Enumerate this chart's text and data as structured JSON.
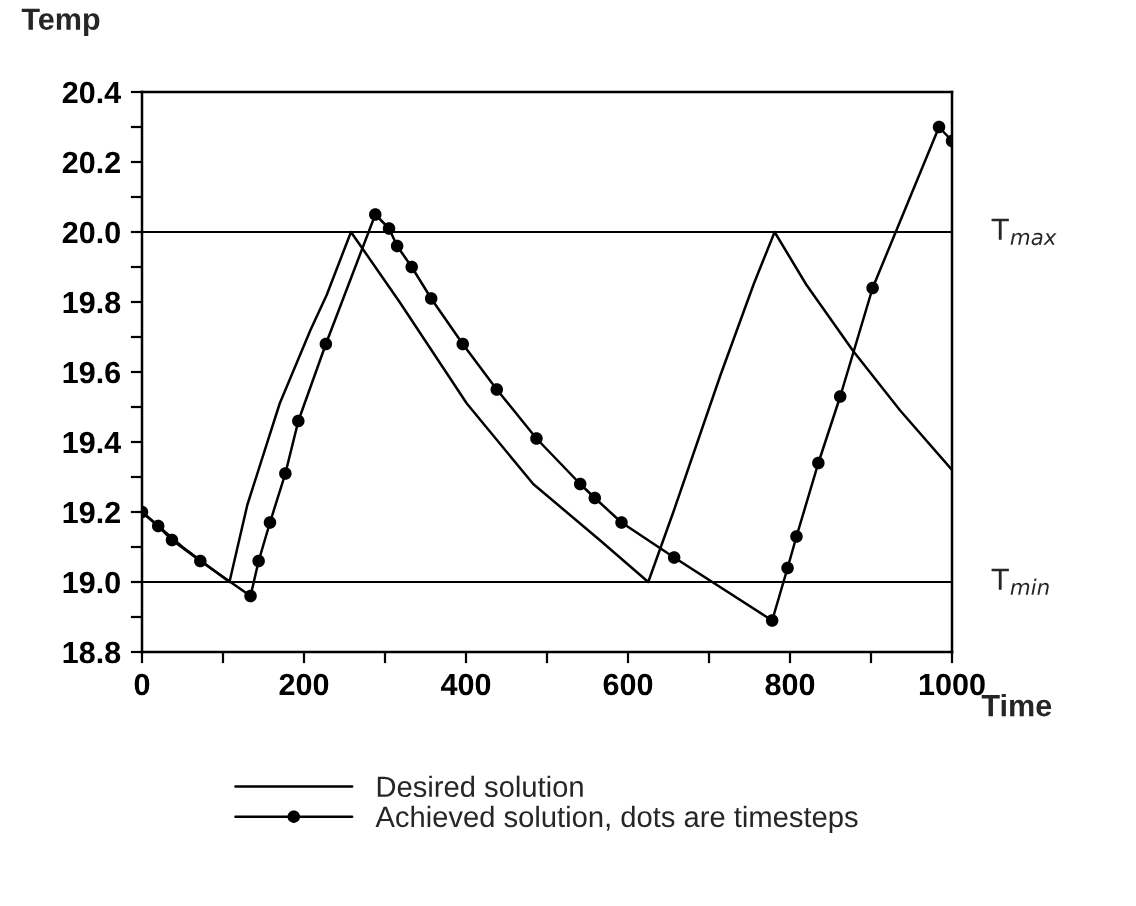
{
  "chart_data": {
    "type": "line",
    "xlabel": "Time",
    "ylabel": "Temp",
    "xlim": [
      0,
      1000
    ],
    "ylim": [
      18.8,
      20.4
    ],
    "xticks": [
      0,
      {
        "value": 100,
        "label": null
      },
      200,
      {
        "value": 300,
        "label": null
      },
      400,
      {
        "value": 500,
        "label": null
      },
      600,
      {
        "value": 700,
        "label": null
      },
      800,
      {
        "value": 900,
        "label": null
      },
      1000
    ],
    "yticks": [
      18.8,
      {
        "value": 18.9,
        "label": null
      },
      {
        "value": 19.0,
        "label": "19.0"
      },
      {
        "value": 19.1,
        "label": null
      },
      19.2,
      {
        "value": 19.3,
        "label": null
      },
      19.4,
      {
        "value": 19.5,
        "label": null
      },
      19.6,
      {
        "value": 19.7,
        "label": null
      },
      19.8,
      {
        "value": 19.9,
        "label": null
      },
      {
        "value": 20.0,
        "label": "20.0"
      },
      {
        "value": 20.1,
        "label": null
      },
      20.2,
      {
        "value": 20.3,
        "label": null
      },
      20.4
    ],
    "series": [
      {
        "name": "Desired solution",
        "color": "#000000",
        "marker": "none",
        "x": [
          0,
          50,
          108,
          130,
          170,
          208,
          228,
          258,
          318,
          401,
          483,
          565,
          625,
          656,
          714,
          755,
          781,
          820,
          878,
          936,
          1000
        ],
        "values": [
          19.2,
          19.1,
          19.0,
          19.22,
          19.51,
          19.72,
          19.82,
          20.0,
          19.8,
          19.51,
          19.28,
          19.12,
          19.0,
          19.2,
          19.59,
          19.85,
          20.0,
          19.85,
          19.66,
          19.49,
          19.32
        ]
      },
      {
        "name": "Achieved solution, dots are timesteps",
        "color": "#000000",
        "marker": "circle",
        "x": [
          0,
          20,
          37,
          72,
          134,
          144,
          158,
          177,
          193,
          227,
          288,
          305,
          315,
          333,
          357,
          396,
          438,
          487,
          541,
          559,
          592,
          657,
          778,
          797,
          808,
          835,
          862,
          902,
          984,
          1000
        ],
        "values": [
          19.2,
          19.16,
          19.12,
          19.06,
          18.96,
          19.06,
          19.17,
          19.31,
          19.46,
          19.68,
          20.05,
          20.01,
          19.96,
          19.9,
          19.81,
          19.68,
          19.55,
          19.41,
          19.28,
          19.24,
          19.17,
          19.07,
          18.89,
          19.04,
          19.13,
          19.34,
          19.53,
          19.84,
          20.3,
          20.26
        ]
      }
    ],
    "ref_lines": [
      {
        "axis": "y",
        "value": 20.0,
        "label": "T$_{max}$",
        "color": "#000000"
      },
      {
        "axis": "y",
        "value": 19.0,
        "label": "T$_{min}$",
        "color": "#000000"
      }
    ],
    "grid": false,
    "legend": "bottom",
    "line_style": "solid"
  }
}
